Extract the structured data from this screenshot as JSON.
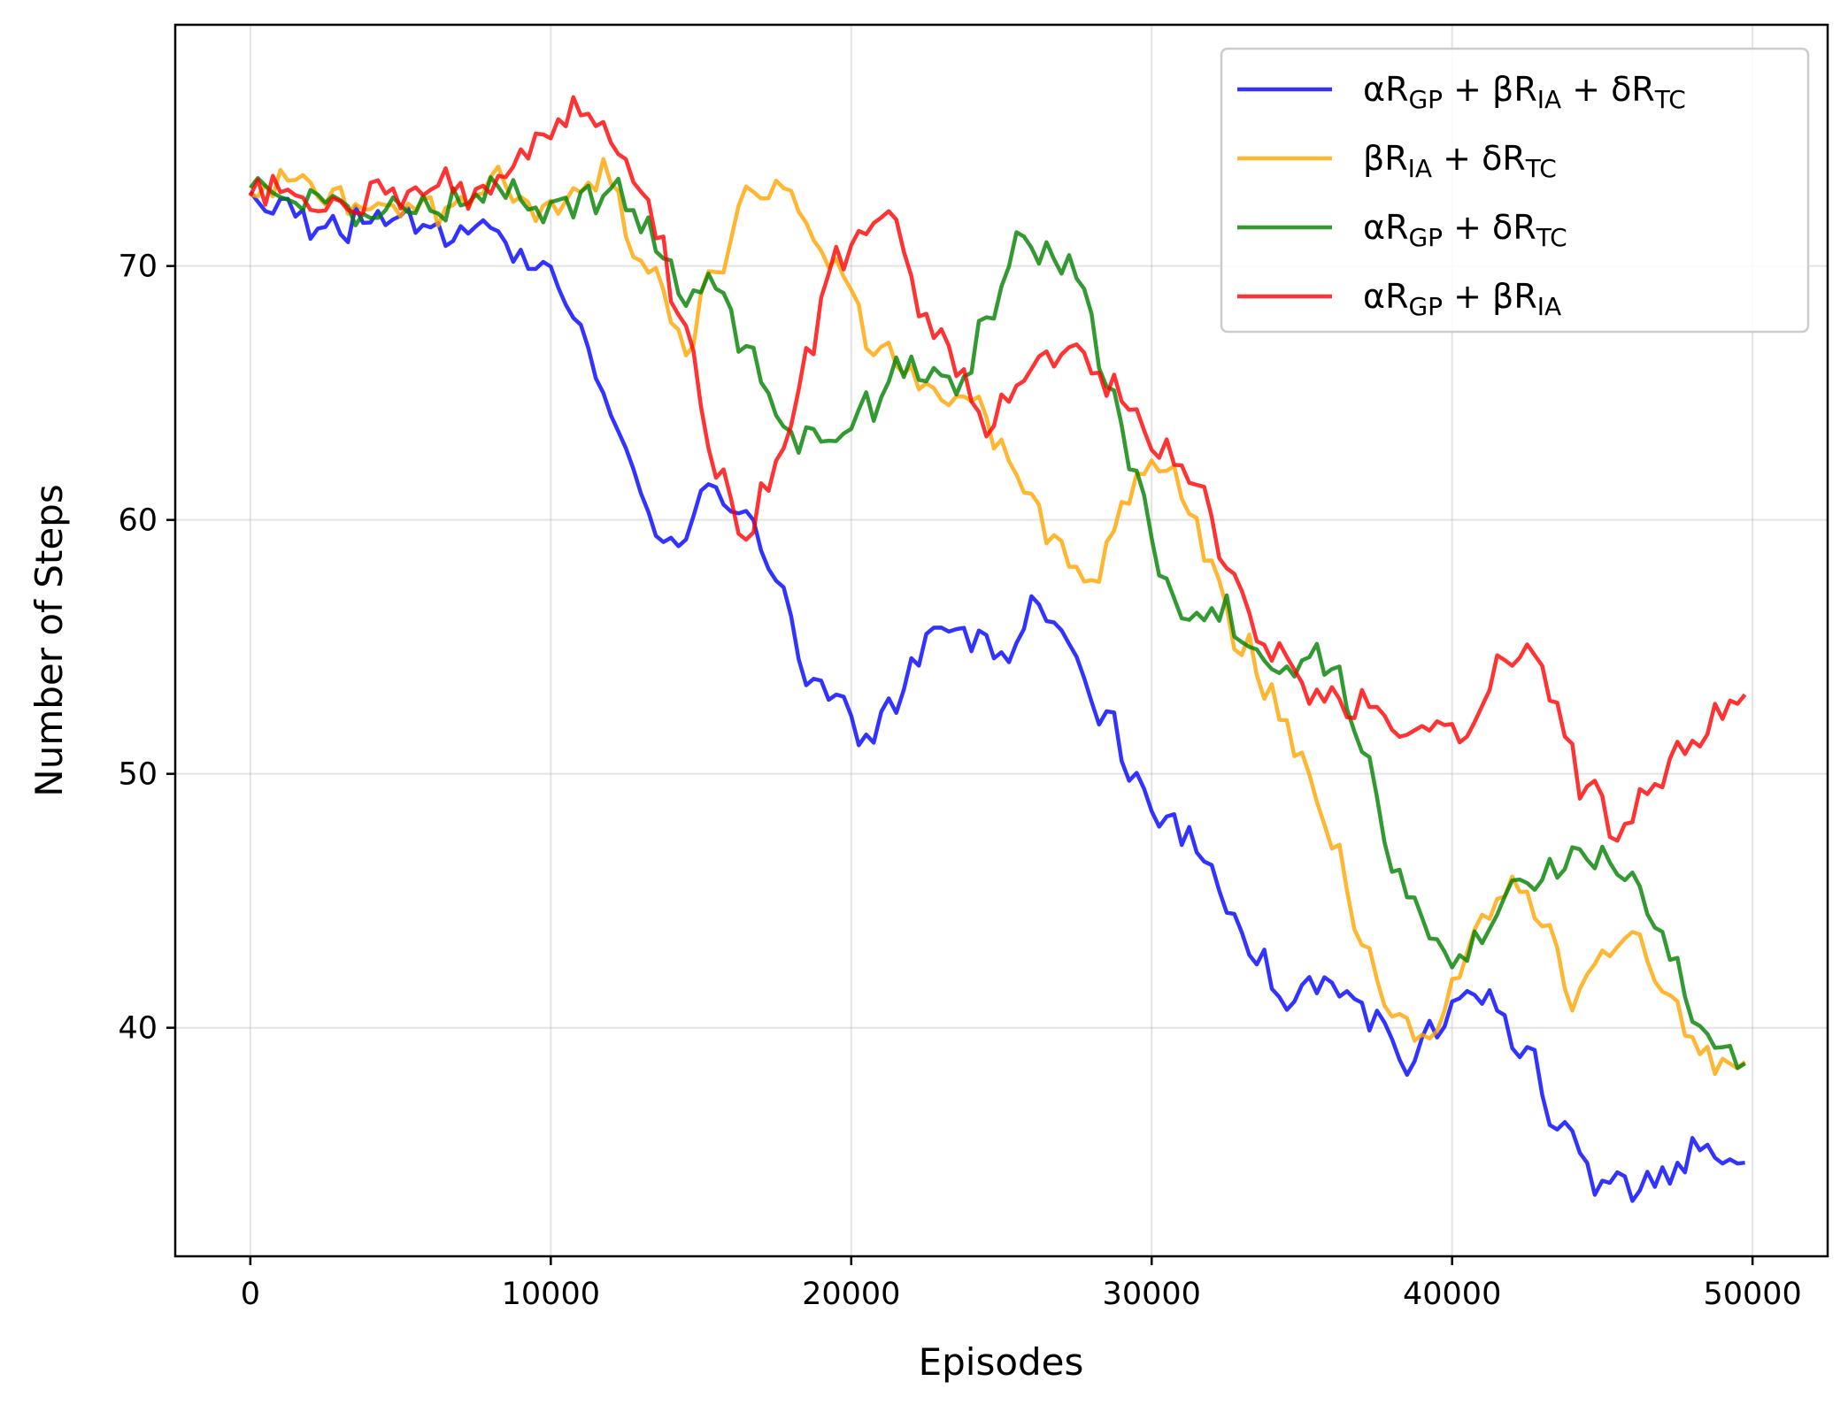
{
  "chart_data": {
    "type": "line",
    "title": "",
    "xlabel": "Episodes",
    "ylabel": "Number of Steps",
    "xlim": [
      -2500,
      52500
    ],
    "ylim": [
      31,
      79.5
    ],
    "xticks": [
      0,
      10000,
      20000,
      30000,
      40000,
      50000
    ],
    "yticks": [
      40,
      50,
      60,
      70
    ],
    "grid": true,
    "legend_position": "top-right",
    "colors": [
      "#0000ff",
      "#ffa500",
      "#008000",
      "#ff0000"
    ],
    "x_step": 250,
    "series": [
      {
        "name": "αRGP + βRIA + δRTC",
        "legend": {
          "parts": [
            [
              "α",
              ""
            ],
            [
              "R",
              ""
            ],
            [
              "GP",
              "sub"
            ],
            [
              " + β",
              ""
            ],
            [
              "R",
              ""
            ],
            [
              "IA",
              "sub"
            ],
            [
              " + δ",
              ""
            ],
            [
              "R",
              ""
            ],
            [
              "TC",
              "sub"
            ]
          ]
        },
        "color": "#0000ff",
        "anchors": [
          [
            0,
            72.5
          ],
          [
            3000,
            72.3
          ],
          [
            6000,
            71.6
          ],
          [
            8000,
            71.0
          ],
          [
            9500,
            70.3
          ],
          [
            10500,
            68.8
          ],
          [
            11500,
            66.5
          ],
          [
            12500,
            62.5
          ],
          [
            13500,
            59.8
          ],
          [
            14500,
            59.5
          ],
          [
            15500,
            60.8
          ],
          [
            16500,
            60.2
          ],
          [
            17500,
            57.5
          ],
          [
            18500,
            54.0
          ],
          [
            19500,
            52.8
          ],
          [
            20500,
            50.8
          ],
          [
            21500,
            53.2
          ],
          [
            22500,
            55.0
          ],
          [
            24000,
            55.2
          ],
          [
            25000,
            54.0
          ],
          [
            26000,
            56.8
          ],
          [
            27000,
            55.5
          ],
          [
            28500,
            52.0
          ],
          [
            29500,
            49.0
          ],
          [
            31000,
            47.5
          ],
          [
            32500,
            45.5
          ],
          [
            33500,
            43.0
          ],
          [
            34500,
            41.3
          ],
          [
            36000,
            41.8
          ],
          [
            37500,
            40.3
          ],
          [
            38500,
            38.7
          ],
          [
            39500,
            39.8
          ],
          [
            40500,
            41.8
          ],
          [
            41500,
            40.8
          ],
          [
            42500,
            38.8
          ],
          [
            43500,
            35.8
          ],
          [
            45000,
            33.8
          ],
          [
            46000,
            33.5
          ],
          [
            47000,
            34.2
          ],
          [
            48000,
            35.0
          ],
          [
            49800,
            34.7
          ]
        ]
      },
      {
        "name": "βRIA + δRTC",
        "legend": {
          "parts": [
            [
              "β",
              ""
            ],
            [
              "R",
              ""
            ],
            [
              "IA",
              "sub"
            ],
            [
              " + δ",
              ""
            ],
            [
              "R",
              ""
            ],
            [
              "TC",
              "sub"
            ]
          ]
        },
        "color": "#ffa500",
        "anchors": [
          [
            0,
            73.0
          ],
          [
            3000,
            72.8
          ],
          [
            6000,
            72.3
          ],
          [
            8000,
            73.2
          ],
          [
            10000,
            73.0
          ],
          [
            12000,
            73.5
          ],
          [
            13000,
            70.0
          ],
          [
            14500,
            67.5
          ],
          [
            15500,
            70.5
          ],
          [
            16500,
            72.8
          ],
          [
            17500,
            73.2
          ],
          [
            18500,
            72.0
          ],
          [
            19500,
            70.2
          ],
          [
            21000,
            66.5
          ],
          [
            22500,
            65.0
          ],
          [
            24000,
            64.8
          ],
          [
            25000,
            63.0
          ],
          [
            26000,
            60.5
          ],
          [
            27000,
            58.8
          ],
          [
            28000,
            57.2
          ],
          [
            29000,
            60.5
          ],
          [
            30000,
            62.5
          ],
          [
            31000,
            61.5
          ],
          [
            32000,
            58.5
          ],
          [
            33000,
            55.0
          ],
          [
            34000,
            52.5
          ],
          [
            35000,
            50.5
          ],
          [
            36000,
            47.0
          ],
          [
            37000,
            43.5
          ],
          [
            38000,
            40.0
          ],
          [
            39000,
            38.8
          ],
          [
            40000,
            41.2
          ],
          [
            41000,
            44.0
          ],
          [
            42000,
            45.3
          ],
          [
            43000,
            43.5
          ],
          [
            44000,
            41.0
          ],
          [
            45000,
            42.5
          ],
          [
            46000,
            43.5
          ],
          [
            47000,
            41.5
          ],
          [
            48000,
            39.5
          ],
          [
            49000,
            38.5
          ],
          [
            49800,
            39.2
          ]
        ]
      },
      {
        "name": "αRGP + δRTC",
        "legend": {
          "parts": [
            [
              "α",
              ""
            ],
            [
              "R",
              ""
            ],
            [
              "GP",
              "sub"
            ],
            [
              " + δ",
              ""
            ],
            [
              "R",
              ""
            ],
            [
              "TC",
              "sub"
            ]
          ]
        },
        "color": "#008000",
        "anchors": [
          [
            0,
            73.0
          ],
          [
            4000,
            72.5
          ],
          [
            8000,
            73.0
          ],
          [
            10000,
            72.3
          ],
          [
            12000,
            72.8
          ],
          [
            13500,
            70.8
          ],
          [
            14500,
            69.0
          ],
          [
            15500,
            69.5
          ],
          [
            16500,
            67.0
          ],
          [
            17500,
            64.0
          ],
          [
            18500,
            63.0
          ],
          [
            19500,
            62.8
          ],
          [
            20500,
            65.0
          ],
          [
            22000,
            66.0
          ],
          [
            23500,
            65.5
          ],
          [
            24500,
            67.5
          ],
          [
            25500,
            70.8
          ],
          [
            26500,
            70.5
          ],
          [
            27500,
            70.0
          ],
          [
            28500,
            66.0
          ],
          [
            29500,
            61.5
          ],
          [
            30500,
            57.0
          ],
          [
            31500,
            56.0
          ],
          [
            32500,
            56.5
          ],
          [
            33500,
            55.0
          ],
          [
            35000,
            54.5
          ],
          [
            36000,
            54.5
          ],
          [
            37000,
            51.0
          ],
          [
            38000,
            47.0
          ],
          [
            39000,
            44.0
          ],
          [
            40000,
            42.5
          ],
          [
            41000,
            43.5
          ],
          [
            42000,
            45.5
          ],
          [
            43000,
            46.3
          ],
          [
            44000,
            46.5
          ],
          [
            45000,
            46.5
          ],
          [
            46000,
            46.5
          ],
          [
            47000,
            44.0
          ],
          [
            48000,
            40.5
          ],
          [
            49800,
            38.8
          ]
        ]
      },
      {
        "name": "αRGP + βRIA",
        "legend": {
          "parts": [
            [
              "α",
              ""
            ],
            [
              "R",
              ""
            ],
            [
              "GP",
              "sub"
            ],
            [
              " + β",
              ""
            ],
            [
              "R",
              ""
            ],
            [
              "IA",
              "sub"
            ]
          ]
        },
        "color": "#ff0000",
        "anchors": [
          [
            0,
            72.8
          ],
          [
            4000,
            73.0
          ],
          [
            8000,
            73.3
          ],
          [
            9500,
            74.5
          ],
          [
            10500,
            75.8
          ],
          [
            11500,
            75.8
          ],
          [
            12500,
            74.0
          ],
          [
            13500,
            71.8
          ],
          [
            14500,
            67.5
          ],
          [
            15500,
            62.0
          ],
          [
            16500,
            59.5
          ],
          [
            17500,
            62.5
          ],
          [
            18500,
            67.0
          ],
          [
            19500,
            70.5
          ],
          [
            20500,
            71.5
          ],
          [
            21500,
            71.8
          ],
          [
            22500,
            67.5
          ],
          [
            23500,
            66.0
          ],
          [
            24500,
            63.5
          ],
          [
            25500,
            65.0
          ],
          [
            26500,
            66.5
          ],
          [
            27500,
            67.0
          ],
          [
            28500,
            65.8
          ],
          [
            29500,
            63.5
          ],
          [
            30500,
            62.5
          ],
          [
            31500,
            61.0
          ],
          [
            32500,
            58.0
          ],
          [
            33500,
            56.0
          ],
          [
            34500,
            54.5
          ],
          [
            35500,
            52.5
          ],
          [
            36500,
            52.5
          ],
          [
            37500,
            52.5
          ],
          [
            38500,
            51.5
          ],
          [
            39500,
            51.5
          ],
          [
            40500,
            52.0
          ],
          [
            41500,
            54.0
          ],
          [
            42500,
            54.5
          ],
          [
            43500,
            52.5
          ],
          [
            44500,
            49.5
          ],
          [
            45500,
            47.5
          ],
          [
            46500,
            49.5
          ],
          [
            47500,
            51.0
          ],
          [
            48500,
            51.5
          ],
          [
            49500,
            52.5
          ],
          [
            49800,
            52.3
          ]
        ]
      }
    ]
  }
}
